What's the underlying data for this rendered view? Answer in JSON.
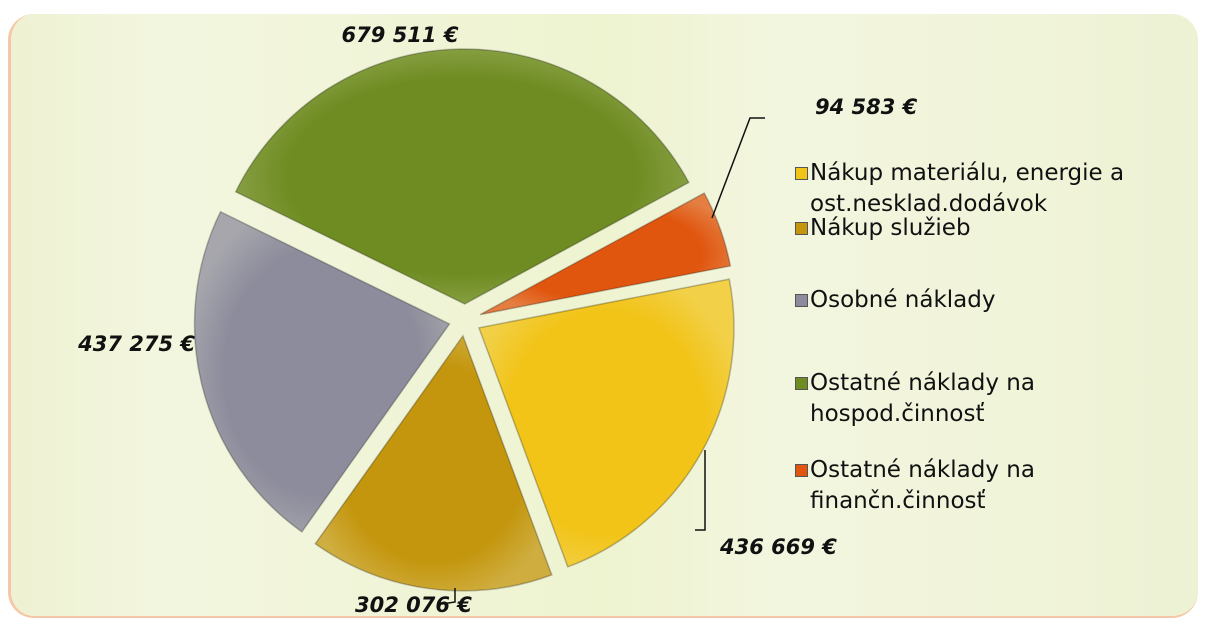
{
  "chart_data": {
    "type": "pie",
    "categories": [
      "Nákup materiálu, energie a ost.nesklad.dodávok",
      "Nákup služieb",
      "Osobné náklady",
      "Ostatné náklady na hospod.činnosť",
      "Ostatné náklady na finančn.činnosť"
    ],
    "values": [
      436669,
      302076,
      437275,
      679511,
      94583
    ],
    "value_labels": [
      "436 669 €",
      "302 076 €",
      "437 275 €",
      "679 511 €",
      "94 583 €"
    ],
    "colors": [
      "#f2c418",
      "#c4960e",
      "#8c8c9c",
      "#6f8c22",
      "#e0560f"
    ],
    "legend": "right"
  }
}
